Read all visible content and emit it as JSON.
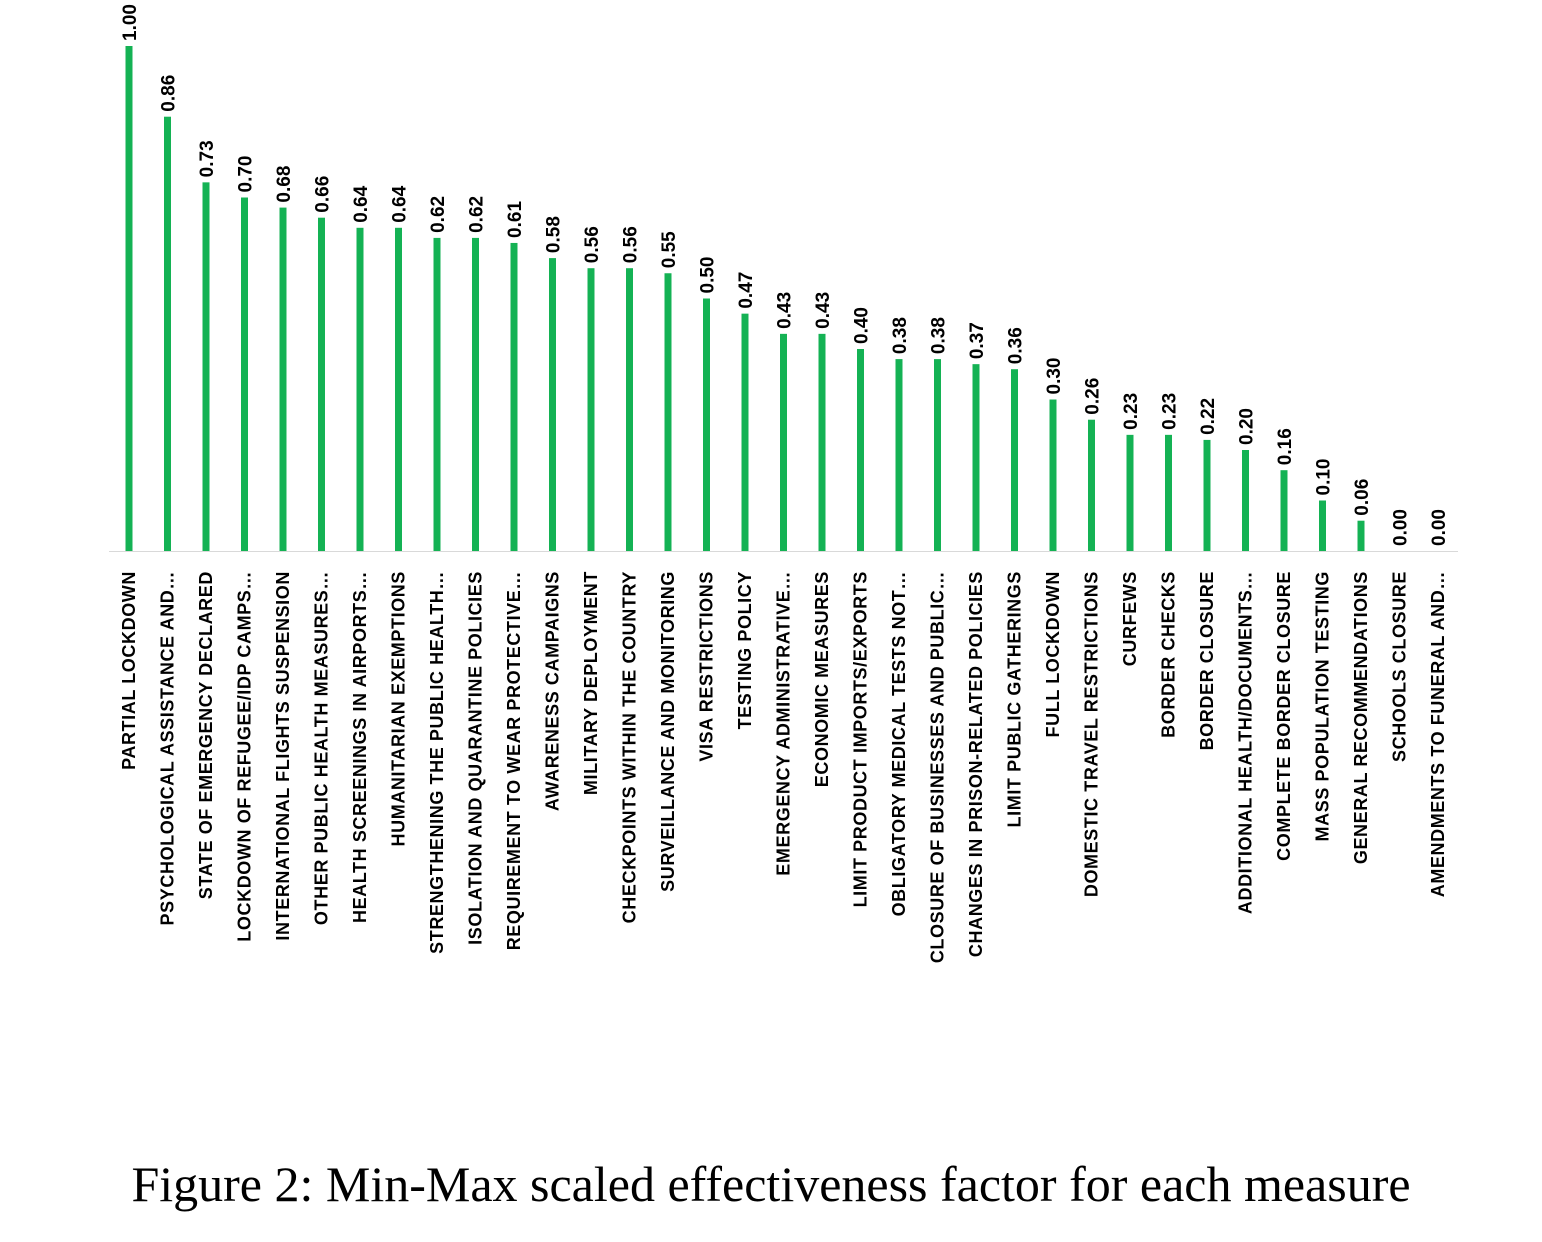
{
  "caption": "Figure 2: Min-Max scaled effectiveness factor for each measure",
  "colors": {
    "bar": "#14B254",
    "axis": "#d9d9d9",
    "text": "#000000"
  },
  "chart_data": {
    "type": "bar",
    "title": "",
    "xlabel": "",
    "ylabel": "",
    "ylim": [
      0,
      1
    ],
    "grid": false,
    "legend": "none",
    "categories": [
      "PARTIAL LOCKDOWN",
      "PSYCHOLOGICAL ASSISTANCE AND…",
      "STATE OF EMERGENCY DECLARED",
      "LOCKDOWN OF REFUGEE/IDP CAMPS…",
      "INTERNATIONAL FLIGHTS SUSPENSION",
      "OTHER PUBLIC HEALTH MEASURES…",
      "HEALTH SCREENINGS IN AIRPORTS…",
      "HUMANITARIAN EXEMPTIONS",
      "STRENGTHENING THE PUBLIC HEALTH…",
      "ISOLATION AND QUARANTINE POLICIES",
      "REQUIREMENT TO WEAR PROTECTIVE…",
      "AWARENESS CAMPAIGNS",
      "MILITARY DEPLOYMENT",
      "CHECKPOINTS WITHIN THE COUNTRY",
      "SURVEILLANCE AND MONITORING",
      "VISA RESTRICTIONS",
      "TESTING POLICY",
      "EMERGENCY ADMINISTRATIVE…",
      "ECONOMIC MEASURES",
      "LIMIT PRODUCT IMPORTS/EXPORTS",
      "OBLIGATORY MEDICAL TESTS NOT…",
      "CLOSURE OF BUSINESSES AND PUBLIC…",
      "CHANGES IN PRISON-RELATED POLICIES",
      "LIMIT PUBLIC GATHERINGS",
      "FULL LOCKDOWN",
      "DOMESTIC TRAVEL RESTRICTIONS",
      "CURFEWS",
      "BORDER CHECKS",
      "BORDER CLOSURE",
      "ADDITIONAL HEALTH/DOCUMENTS…",
      "COMPLETE BORDER CLOSURE",
      "MASS POPULATION TESTING",
      "GENERAL RECOMMENDATIONS",
      "SCHOOLS CLOSURE",
      "AMENDMENTS TO FUNERAL AND…"
    ],
    "values": [
      1.0,
      0.86,
      0.73,
      0.7,
      0.68,
      0.66,
      0.64,
      0.64,
      0.62,
      0.62,
      0.61,
      0.58,
      0.56,
      0.56,
      0.55,
      0.5,
      0.47,
      0.43,
      0.43,
      0.4,
      0.38,
      0.38,
      0.37,
      0.36,
      0.3,
      0.26,
      0.23,
      0.23,
      0.22,
      0.2,
      0.16,
      0.1,
      0.06,
      0.0,
      0.0
    ],
    "value_labels": [
      "1.00",
      "0.86",
      "0.73",
      "0.70",
      "0.68",
      "0.66",
      "0.64",
      "0.64",
      "0.62",
      "0.62",
      "0.61",
      "0.58",
      "0.56",
      "0.56",
      "0.55",
      "0.50",
      "0.47",
      "0.43",
      "0.43",
      "0.40",
      "0.38",
      "0.38",
      "0.37",
      "0.36",
      "0.30",
      "0.26",
      "0.23",
      "0.23",
      "0.22",
      "0.20",
      "0.16",
      "0.10",
      "0.06",
      "0.00",
      "0.00"
    ]
  }
}
